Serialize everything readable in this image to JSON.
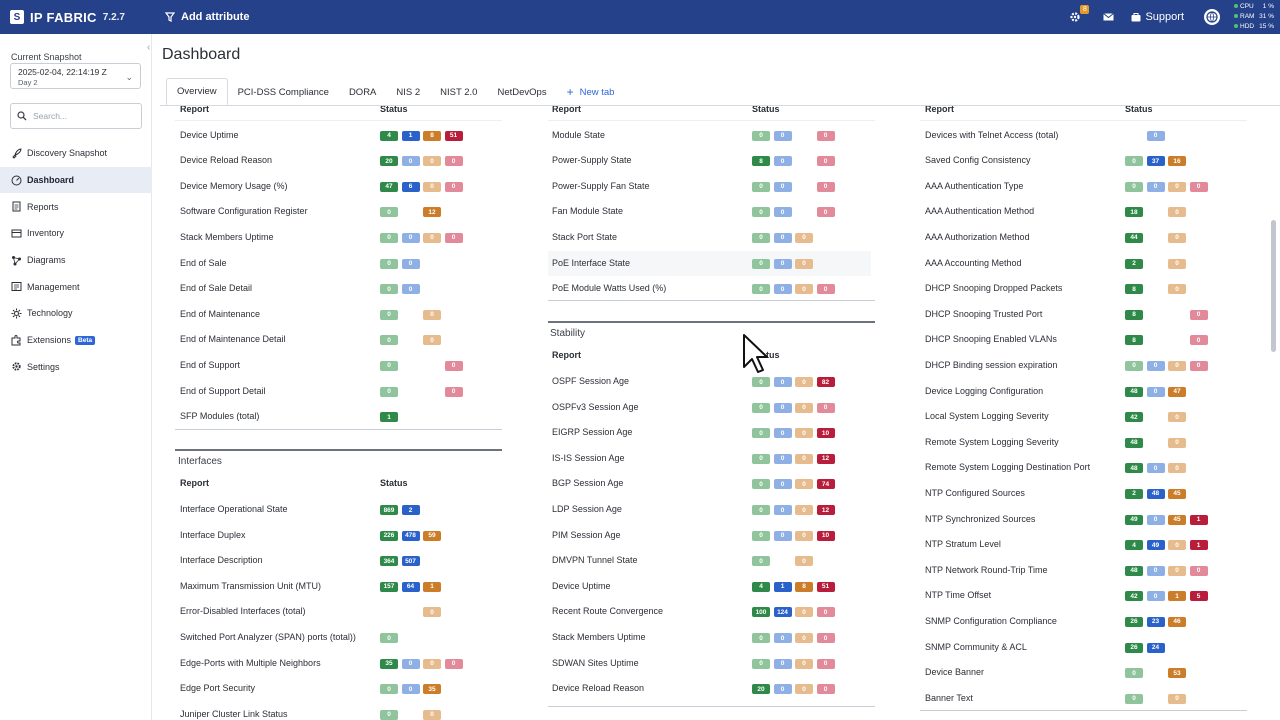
{
  "topbar": {
    "brand": "IP FABRIC",
    "version": "7.2.7",
    "add_attribute": "Add attribute",
    "notif_badge": "8",
    "support": "Support",
    "meters": [
      {
        "label": "CPU",
        "value": "1 %"
      },
      {
        "label": "RAM",
        "value": "31 %"
      },
      {
        "label": "HDD",
        "value": "15 %"
      }
    ]
  },
  "sidebar": {
    "snapshot_label": "Current Snapshot",
    "snapshot_date": "2025-02-04, 22:14:19 Z",
    "snapshot_sub": "Day 2",
    "search_placeholder": "Search...",
    "items": [
      {
        "label": "Discovery Snapshot",
        "icon": "rocket-icon"
      },
      {
        "label": "Dashboard",
        "icon": "dashboard-icon"
      },
      {
        "label": "Reports",
        "icon": "reports-icon"
      },
      {
        "label": "Inventory",
        "icon": "inventory-icon"
      },
      {
        "label": "Diagrams",
        "icon": "diagrams-icon"
      },
      {
        "label": "Management",
        "icon": "management-icon"
      },
      {
        "label": "Technology",
        "icon": "technology-icon"
      },
      {
        "label": "Extensions",
        "icon": "extensions-icon",
        "badge": "Beta"
      },
      {
        "label": "Settings",
        "icon": "settings-icon"
      }
    ]
  },
  "main": {
    "title": "Dashboard",
    "tabs": [
      "Overview",
      "PCI-DSS Compliance",
      "DORA",
      "NIS 2",
      "NIST 2.0",
      "NetDevOps"
    ],
    "new_tab": "New tab",
    "col_report": "Report",
    "col_status": "Status",
    "sections": {
      "interfaces": "Interfaces",
      "stability": "Stability"
    }
  },
  "colors": {
    "topbar": "#24418a",
    "green": "#2f8a4a",
    "green_light": "#8fc49c",
    "blue": "#2a62c9",
    "blue_light": "#8eb0e5",
    "orange": "#cc7d2a",
    "orange_light": "#e6bb8d",
    "red": "#b81d3c",
    "red_light": "#e2899a"
  },
  "col1_top": [
    {
      "label": "Device Uptime",
      "p": [
        "4",
        "1",
        "8",
        "51"
      ],
      "s": [
        "g",
        "b",
        "o",
        "r"
      ]
    },
    {
      "label": "Device Reload Reason",
      "p": [
        "20",
        "0",
        "0",
        "0"
      ],
      "s": [
        "g",
        "bl",
        "ol",
        "rl"
      ]
    },
    {
      "label": "Device Memory Usage (%)",
      "p": [
        "47",
        "6",
        "0",
        "0"
      ],
      "s": [
        "g",
        "b",
        "ol",
        "rl"
      ]
    },
    {
      "label": "Software Configuration Register",
      "p": [
        "0",
        "",
        "12",
        ""
      ],
      "s": [
        "gl",
        "",
        "o",
        ""
      ]
    },
    {
      "label": "Stack Members Uptime",
      "p": [
        "0",
        "0",
        "0",
        "0"
      ],
      "s": [
        "gl",
        "bl",
        "ol",
        "rl"
      ]
    },
    {
      "label": "End of Sale",
      "p": [
        "0",
        "0",
        "",
        ""
      ],
      "s": [
        "gl",
        "bl",
        "",
        ""
      ]
    },
    {
      "label": "End of Sale Detail",
      "p": [
        "0",
        "0",
        "",
        ""
      ],
      "s": [
        "gl",
        "bl",
        "",
        ""
      ]
    },
    {
      "label": "End of Maintenance",
      "p": [
        "0",
        "",
        "0",
        ""
      ],
      "s": [
        "gl",
        "",
        "ol",
        ""
      ]
    },
    {
      "label": "End of Maintenance Detail",
      "p": [
        "0",
        "",
        "0",
        ""
      ],
      "s": [
        "gl",
        "",
        "ol",
        ""
      ]
    },
    {
      "label": "End of Support",
      "p": [
        "0",
        "",
        "",
        "0"
      ],
      "s": [
        "gl",
        "",
        "",
        "rl"
      ]
    },
    {
      "label": "End of Support Detail",
      "p": [
        "0",
        "",
        "",
        "0"
      ],
      "s": [
        "gl",
        "",
        "",
        "rl"
      ]
    },
    {
      "label": "SFP Modules (total)",
      "p": [
        "1",
        "",
        "",
        ""
      ],
      "s": [
        "g",
        "",
        "",
        ""
      ]
    }
  ],
  "col1_interfaces": [
    {
      "label": "Interface Operational State",
      "p": [
        "869",
        "2",
        "",
        ""
      ],
      "s": [
        "g",
        "b",
        "",
        ""
      ]
    },
    {
      "label": "Interface Duplex",
      "p": [
        "226",
        "478",
        "59",
        ""
      ],
      "s": [
        "g",
        "b",
        "o",
        ""
      ]
    },
    {
      "label": "Interface Description",
      "p": [
        "364",
        "507",
        "",
        ""
      ],
      "s": [
        "g",
        "b",
        "",
        ""
      ]
    },
    {
      "label": "Maximum Transmission Unit (MTU)",
      "p": [
        "157",
        "64",
        "1",
        ""
      ],
      "s": [
        "g",
        "b",
        "o",
        ""
      ]
    },
    {
      "label": "Error-Disabled Interfaces (total)",
      "p": [
        "",
        "",
        "0",
        ""
      ],
      "s": [
        "",
        "",
        "ol",
        ""
      ]
    },
    {
      "label": "Switched Port Analyzer (SPAN) ports (total))",
      "p": [
        "0",
        "",
        "",
        ""
      ],
      "s": [
        "gl",
        "",
        "",
        ""
      ]
    },
    {
      "label": "Edge-Ports with Multiple Neighbors",
      "p": [
        "35",
        "0",
        "0",
        "0"
      ],
      "s": [
        "g",
        "bl",
        "ol",
        "rl"
      ]
    },
    {
      "label": "Edge Port Security",
      "p": [
        "0",
        "0",
        "35",
        ""
      ],
      "s": [
        "gl",
        "bl",
        "o",
        ""
      ]
    },
    {
      "label": "Juniper Cluster Link Status",
      "p": [
        "0",
        "",
        "0",
        ""
      ],
      "s": [
        "gl",
        "",
        "ol",
        ""
      ]
    }
  ],
  "col2_top": [
    {
      "label": "Module State",
      "p": [
        "0",
        "0",
        "",
        "0"
      ],
      "s": [
        "gl",
        "bl",
        "",
        "rl"
      ]
    },
    {
      "label": "Power-Supply State",
      "p": [
        "8",
        "0",
        "",
        "0"
      ],
      "s": [
        "g",
        "bl",
        "",
        "rl"
      ]
    },
    {
      "label": "Power-Supply Fan State",
      "p": [
        "0",
        "0",
        "",
        "0"
      ],
      "s": [
        "gl",
        "bl",
        "",
        "rl"
      ]
    },
    {
      "label": "Fan Module State",
      "p": [
        "0",
        "0",
        "",
        "0"
      ],
      "s": [
        "gl",
        "bl",
        "",
        "rl"
      ]
    },
    {
      "label": "Stack Port State",
      "p": [
        "0",
        "0",
        "0",
        ""
      ],
      "s": [
        "gl",
        "bl",
        "ol",
        ""
      ]
    },
    {
      "label": "PoE Interface State",
      "p": [
        "0",
        "0",
        "0",
        ""
      ],
      "s": [
        "gl",
        "bl",
        "ol",
        ""
      ]
    },
    {
      "label": "PoE Module Watts Used (%)",
      "p": [
        "0",
        "0",
        "0",
        "0"
      ],
      "s": [
        "gl",
        "bl",
        "ol",
        "rl"
      ]
    }
  ],
  "col2_stability": [
    {
      "label": "OSPF Session Age",
      "p": [
        "0",
        "0",
        "0",
        "82"
      ],
      "s": [
        "gl",
        "bl",
        "ol",
        "r"
      ]
    },
    {
      "label": "OSPFv3 Session Age",
      "p": [
        "0",
        "0",
        "0",
        "0"
      ],
      "s": [
        "gl",
        "bl",
        "ol",
        "rl"
      ]
    },
    {
      "label": "EIGRP Session Age",
      "p": [
        "0",
        "0",
        "0",
        "10"
      ],
      "s": [
        "gl",
        "bl",
        "ol",
        "r"
      ]
    },
    {
      "label": "IS-IS Session Age",
      "p": [
        "0",
        "0",
        "0",
        "12"
      ],
      "s": [
        "gl",
        "bl",
        "ol",
        "r"
      ]
    },
    {
      "label": "BGP Session Age",
      "p": [
        "0",
        "0",
        "0",
        "74"
      ],
      "s": [
        "gl",
        "bl",
        "ol",
        "r"
      ]
    },
    {
      "label": "LDP Session Age",
      "p": [
        "0",
        "0",
        "0",
        "12"
      ],
      "s": [
        "gl",
        "bl",
        "ol",
        "r"
      ]
    },
    {
      "label": "PIM Session Age",
      "p": [
        "0",
        "0",
        "0",
        "10"
      ],
      "s": [
        "gl",
        "bl",
        "ol",
        "r"
      ]
    },
    {
      "label": "DMVPN Tunnel State",
      "p": [
        "0",
        "",
        "0",
        ""
      ],
      "s": [
        "gl",
        "",
        "ol",
        ""
      ]
    },
    {
      "label": "Device Uptime",
      "p": [
        "4",
        "1",
        "8",
        "51"
      ],
      "s": [
        "g",
        "b",
        "o",
        "r"
      ]
    },
    {
      "label": "Recent Route Convergence",
      "p": [
        "100",
        "124",
        "0",
        "0"
      ],
      "s": [
        "g",
        "b",
        "ol",
        "rl"
      ]
    },
    {
      "label": "Stack Members Uptime",
      "p": [
        "0",
        "0",
        "0",
        "0"
      ],
      "s": [
        "gl",
        "bl",
        "ol",
        "rl"
      ]
    },
    {
      "label": "SDWAN Sites Uptime",
      "p": [
        "0",
        "0",
        "0",
        "0"
      ],
      "s": [
        "gl",
        "bl",
        "ol",
        "rl"
      ]
    },
    {
      "label": "Device Reload Reason",
      "p": [
        "20",
        "0",
        "0",
        "0"
      ],
      "s": [
        "g",
        "bl",
        "ol",
        "rl"
      ]
    }
  ],
  "col3": [
    {
      "label": "Devices with Telnet Access (total)",
      "p": [
        "",
        "0",
        "",
        ""
      ],
      "s": [
        "",
        "bl",
        "",
        ""
      ]
    },
    {
      "label": "Saved Config Consistency",
      "p": [
        "0",
        "37",
        "16",
        ""
      ],
      "s": [
        "gl",
        "b",
        "o",
        ""
      ]
    },
    {
      "label": "AAA Authentication Type",
      "p": [
        "0",
        "0",
        "0",
        "0"
      ],
      "s": [
        "gl",
        "bl",
        "ol",
        "rl"
      ]
    },
    {
      "label": "AAA Authentication Method",
      "p": [
        "18",
        "",
        "0",
        ""
      ],
      "s": [
        "g",
        "",
        "ol",
        ""
      ]
    },
    {
      "label": "AAA Authorization Method",
      "p": [
        "44",
        "",
        "0",
        ""
      ],
      "s": [
        "g",
        "",
        "ol",
        ""
      ]
    },
    {
      "label": "AAA Accounting Method",
      "p": [
        "2",
        "",
        "0",
        ""
      ],
      "s": [
        "g",
        "",
        "ol",
        ""
      ]
    },
    {
      "label": "DHCP Snooping Dropped Packets",
      "p": [
        "8",
        "",
        "0",
        ""
      ],
      "s": [
        "g",
        "",
        "ol",
        ""
      ]
    },
    {
      "label": "DHCP Snooping Trusted Port",
      "p": [
        "8",
        "",
        "",
        "0"
      ],
      "s": [
        "g",
        "",
        "",
        "rl"
      ]
    },
    {
      "label": "DHCP Snooping Enabled VLANs",
      "p": [
        "8",
        "",
        "",
        "0"
      ],
      "s": [
        "g",
        "",
        "",
        "rl"
      ]
    },
    {
      "label": "DHCP Binding session expiration",
      "p": [
        "0",
        "0",
        "0",
        "0"
      ],
      "s": [
        "gl",
        "bl",
        "ol",
        "rl"
      ]
    },
    {
      "label": "Device Logging Configuration",
      "p": [
        "48",
        "0",
        "47",
        ""
      ],
      "s": [
        "g",
        "bl",
        "o",
        ""
      ]
    },
    {
      "label": "Local System Logging Severity",
      "p": [
        "42",
        "",
        "0",
        ""
      ],
      "s": [
        "g",
        "",
        "ol",
        ""
      ]
    },
    {
      "label": "Remote System Logging Severity",
      "p": [
        "48",
        "",
        "0",
        ""
      ],
      "s": [
        "g",
        "",
        "ol",
        ""
      ]
    },
    {
      "label": "Remote System Logging Destination Port",
      "p": [
        "48",
        "0",
        "0",
        ""
      ],
      "s": [
        "g",
        "bl",
        "ol",
        ""
      ]
    },
    {
      "label": "NTP Configured Sources",
      "p": [
        "2",
        "48",
        "45",
        ""
      ],
      "s": [
        "g",
        "b",
        "o",
        ""
      ]
    },
    {
      "label": "NTP Synchronized Sources",
      "p": [
        "49",
        "0",
        "45",
        "1"
      ],
      "s": [
        "g",
        "bl",
        "o",
        "r"
      ]
    },
    {
      "label": "NTP Stratum Level",
      "p": [
        "4",
        "49",
        "0",
        "1"
      ],
      "s": [
        "g",
        "b",
        "ol",
        "r"
      ]
    },
    {
      "label": "NTP Network Round-Trip Time",
      "p": [
        "48",
        "0",
        "0",
        "0"
      ],
      "s": [
        "g",
        "bl",
        "ol",
        "rl"
      ]
    },
    {
      "label": "NTP Time Offset",
      "p": [
        "42",
        "0",
        "1",
        "5"
      ],
      "s": [
        "g",
        "bl",
        "o",
        "r"
      ]
    },
    {
      "label": "SNMP Configuration Compliance",
      "p": [
        "26",
        "23",
        "46",
        ""
      ],
      "s": [
        "g",
        "b",
        "o",
        ""
      ]
    },
    {
      "label": "SNMP Community & ACL",
      "p": [
        "26",
        "24",
        "",
        ""
      ],
      "s": [
        "g",
        "b",
        "",
        ""
      ]
    },
    {
      "label": "Device Banner",
      "p": [
        "0",
        "",
        "53",
        ""
      ],
      "s": [
        "gl",
        "",
        "o",
        ""
      ]
    },
    {
      "label": "Banner Text",
      "p": [
        "0",
        "",
        "0",
        ""
      ],
      "s": [
        "gl",
        "",
        "ol",
        ""
      ]
    }
  ]
}
